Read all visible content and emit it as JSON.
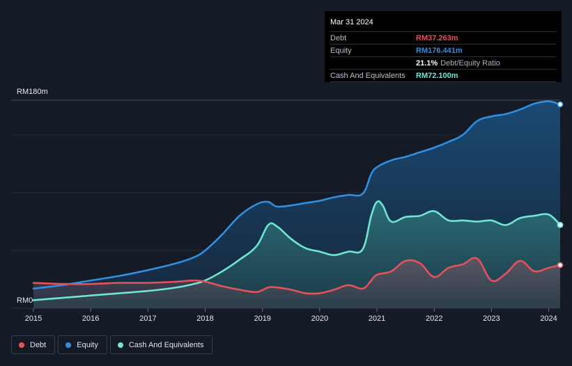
{
  "chart_data": {
    "type": "area",
    "y_unit_prefix": "RM",
    "ylabel_top": "RM180m",
    "ylabel_bottom": "RM0",
    "ylim": [
      0,
      180
    ],
    "xlim": [
      2015.0,
      2024.2
    ],
    "x_ticks": [
      "2015",
      "2016",
      "2017",
      "2018",
      "2019",
      "2020",
      "2021",
      "2022",
      "2023",
      "2024"
    ],
    "grid": true,
    "series": [
      {
        "name": "Equity",
        "color": "#2f8fe0",
        "x": [
          2015.0,
          2015.5,
          2016.0,
          2016.5,
          2017.0,
          2017.5,
          2017.8,
          2018.0,
          2018.3,
          2018.6,
          2018.9,
          2019.1,
          2019.25,
          2019.5,
          2019.75,
          2020.0,
          2020.25,
          2020.5,
          2020.75,
          2020.9,
          2021.0,
          2021.25,
          2021.5,
          2021.75,
          2022.0,
          2022.25,
          2022.5,
          2022.75,
          2023.0,
          2023.25,
          2023.5,
          2023.75,
          2024.0,
          2024.2
        ],
        "values": [
          17,
          20,
          24,
          28,
          33,
          39,
          44,
          50,
          64,
          80,
          90,
          92,
          88,
          89,
          91,
          93,
          96,
          98,
          99,
          116,
          122,
          128,
          131,
          135,
          139,
          144,
          150,
          162,
          166,
          168,
          172,
          177,
          179,
          176.4
        ]
      },
      {
        "name": "Cash And Equivalents",
        "color": "#6fe6d3",
        "x": [
          2015.0,
          2015.5,
          2016.0,
          2016.5,
          2017.0,
          2017.5,
          2017.8,
          2018.0,
          2018.3,
          2018.6,
          2018.9,
          2019.1,
          2019.25,
          2019.5,
          2019.75,
          2020.0,
          2020.25,
          2020.5,
          2020.75,
          2020.9,
          2021.0,
          2021.1,
          2021.25,
          2021.5,
          2021.75,
          2022.0,
          2022.25,
          2022.5,
          2022.75,
          2023.0,
          2023.25,
          2023.5,
          2023.75,
          2024.0,
          2024.2
        ],
        "values": [
          7,
          9,
          11,
          13,
          15,
          18,
          21,
          24,
          32,
          42,
          54,
          72,
          71,
          60,
          52,
          49,
          46,
          49,
          51,
          80,
          92,
          89,
          75,
          79,
          80,
          84,
          76,
          76,
          75,
          76,
          72,
          78,
          80,
          81,
          72.1
        ]
      },
      {
        "name": "Debt",
        "color": "#e4525a",
        "x": [
          2015.0,
          2015.5,
          2016.0,
          2016.5,
          2017.0,
          2017.5,
          2017.8,
          2018.0,
          2018.3,
          2018.6,
          2018.9,
          2019.1,
          2019.25,
          2019.5,
          2019.75,
          2020.0,
          2020.25,
          2020.5,
          2020.75,
          2020.9,
          2021.0,
          2021.25,
          2021.5,
          2021.75,
          2022.0,
          2022.25,
          2022.5,
          2022.75,
          2023.0,
          2023.25,
          2023.5,
          2023.75,
          2024.0,
          2024.2
        ],
        "values": [
          22,
          21,
          21,
          22,
          22,
          23,
          24,
          23,
          19,
          16,
          14,
          18,
          18,
          16,
          13,
          13,
          16,
          20,
          17,
          24,
          29,
          32,
          41,
          39,
          27,
          35,
          38,
          43,
          24,
          30,
          41,
          32,
          35,
          37.3
        ]
      }
    ]
  },
  "tooltip": {
    "date": "Mar 31 2024",
    "rows": [
      {
        "label": "Debt",
        "value": "RM37.263m",
        "color": "#e4525a"
      },
      {
        "label": "Equity",
        "value": "RM176.441m",
        "color": "#2f8fe0"
      },
      {
        "label": "",
        "value": "21.1%",
        "suffix": "Debt/Equity Ratio",
        "color": "#ffffff"
      },
      {
        "label": "Cash And Equivalents",
        "value": "RM72.100m",
        "color": "#6fe6d3"
      }
    ]
  },
  "legend": [
    {
      "label": "Debt",
      "color": "#e4525a"
    },
    {
      "label": "Equity",
      "color": "#2f8fe0"
    },
    {
      "label": "Cash And Equivalents",
      "color": "#6fe6d3"
    }
  ]
}
